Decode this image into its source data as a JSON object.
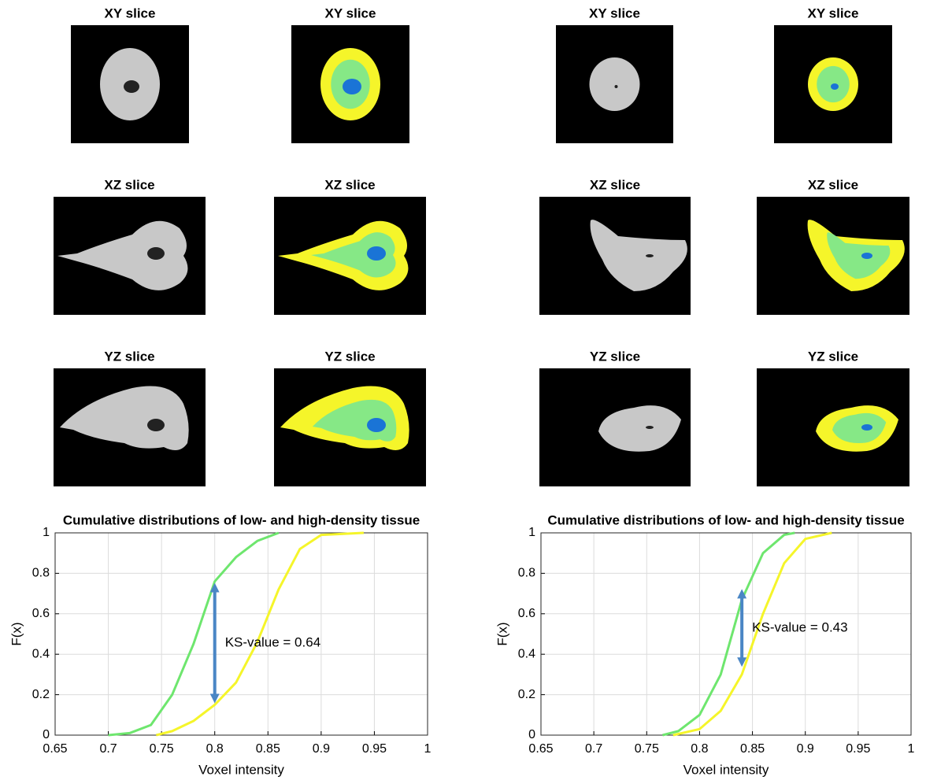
{
  "images": [
    {
      "title": "XY slice"
    },
    {
      "title": "XY slice"
    },
    {
      "title": "XY slice"
    },
    {
      "title": "XY slice"
    },
    {
      "title": "XZ slice"
    },
    {
      "title": "XZ slice"
    },
    {
      "title": "XZ slice"
    },
    {
      "title": "XZ slice"
    },
    {
      "title": "YZ slice"
    },
    {
      "title": "YZ slice"
    },
    {
      "title": "YZ slice"
    },
    {
      "title": "YZ slice"
    }
  ],
  "chart_data": [
    {
      "type": "line",
      "title": "Cumulative distributions of low- and high-density tissue",
      "xlabel": "Voxel intensity",
      "ylabel": "F(x)",
      "xlim": [
        0.65,
        1
      ],
      "xticks": [
        0.65,
        0.7,
        0.75,
        0.8,
        0.85,
        0.9,
        0.95,
        1
      ],
      "ylim": [
        0,
        1
      ],
      "yticks": [
        0,
        0.2,
        0.4,
        0.6,
        0.8,
        1
      ],
      "grid": true,
      "series": [
        {
          "color": "#6ee66e",
          "x": [
            0.7,
            0.72,
            0.74,
            0.76,
            0.78,
            0.8,
            0.82,
            0.84,
            0.86
          ],
          "values": [
            0,
            0.01,
            0.05,
            0.2,
            0.45,
            0.76,
            0.88,
            0.96,
            1
          ]
        },
        {
          "color": "#f5f52a",
          "x": [
            0.745,
            0.76,
            0.78,
            0.8,
            0.82,
            0.84,
            0.86,
            0.88,
            0.9,
            0.94
          ],
          "values": [
            0,
            0.02,
            0.07,
            0.15,
            0.26,
            0.46,
            0.72,
            0.92,
            0.99,
            1
          ]
        }
      ],
      "annotation": "KS-value = 0.64",
      "arrow": {
        "x": 0.8,
        "y": [
          0.15,
          0.76
        ],
        "color": "#4a86c5"
      }
    },
    {
      "type": "line",
      "title": "Cumulative distributions of low- and high-density tissue",
      "xlabel": "Voxel intensity",
      "ylabel": "F(x)",
      "xlim": [
        0.65,
        1
      ],
      "xticks": [
        0.65,
        0.7,
        0.75,
        0.8,
        0.85,
        0.9,
        0.95,
        1
      ],
      "ylim": [
        0,
        1
      ],
      "yticks": [
        0,
        0.2,
        0.4,
        0.6,
        0.8,
        1
      ],
      "grid": true,
      "series": [
        {
          "color": "#6ee66e",
          "x": [
            0.765,
            0.78,
            0.8,
            0.82,
            0.84,
            0.86,
            0.88,
            0.89
          ],
          "values": [
            0,
            0.02,
            0.1,
            0.3,
            0.67,
            0.9,
            0.99,
            1
          ]
        },
        {
          "color": "#f5f52a",
          "x": [
            0.775,
            0.8,
            0.82,
            0.84,
            0.86,
            0.88,
            0.9,
            0.925
          ],
          "values": [
            0,
            0.03,
            0.12,
            0.3,
            0.6,
            0.85,
            0.97,
            1
          ]
        }
      ],
      "annotation": "KS-value = 0.43",
      "arrow": {
        "x": 0.84,
        "y": [
          0.33,
          0.73
        ],
        "color": "#4a86c5"
      }
    }
  ]
}
